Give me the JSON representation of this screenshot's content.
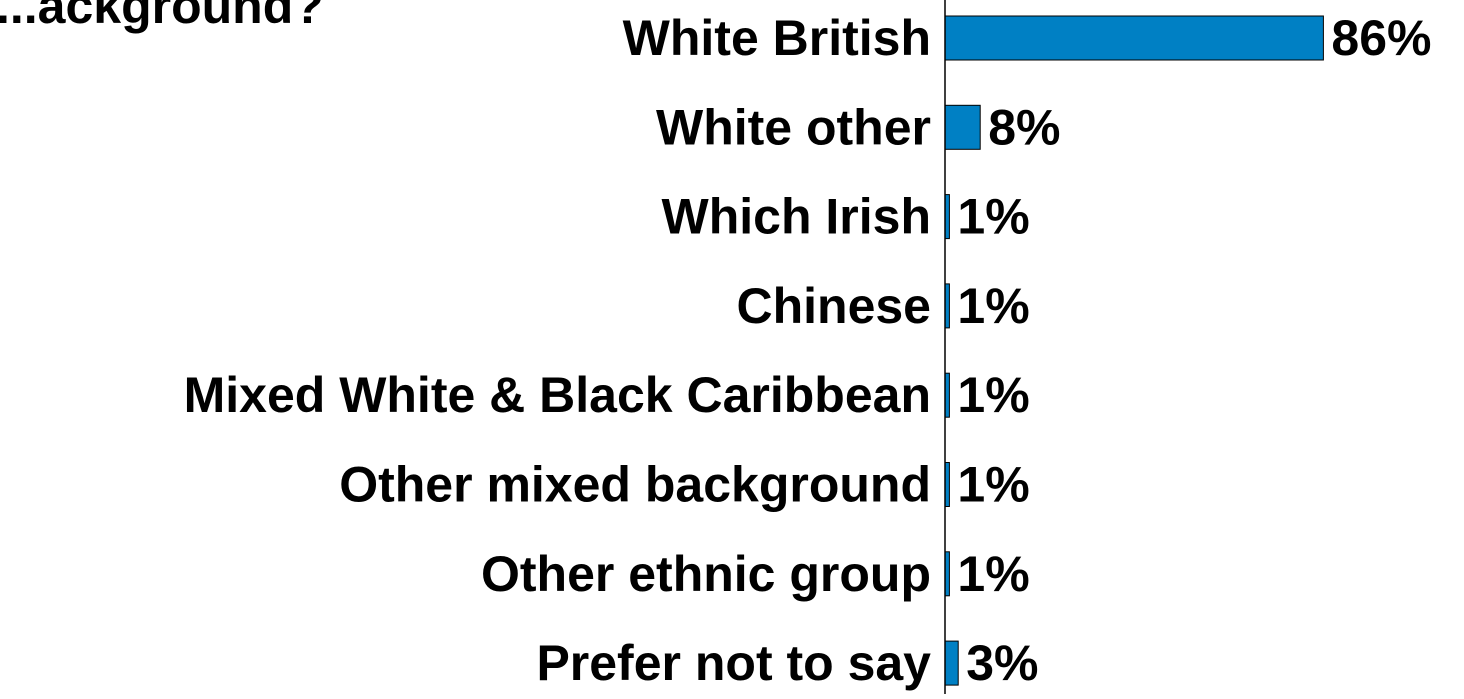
{
  "chart_data": {
    "type": "bar",
    "orientation": "horizontal",
    "title": "...ackground?",
    "categories": [
      "White British",
      "White other",
      "Which Irish",
      "Chinese",
      "Mixed White & Black Caribbean",
      "Other mixed background",
      "Other ethnic group",
      "Prefer not to say"
    ],
    "values": [
      86,
      8,
      1,
      1,
      1,
      1,
      1,
      3
    ],
    "value_labels": [
      "86%",
      "8%",
      "1%",
      "1%",
      "1%",
      "1%",
      "1%",
      "3%"
    ],
    "xlim": [
      0,
      100
    ],
    "unit": "%",
    "grid": false,
    "legend": "none",
    "bar_color": "#0080C4",
    "bar_outline_color": "#000000",
    "text_color": "#000000"
  }
}
